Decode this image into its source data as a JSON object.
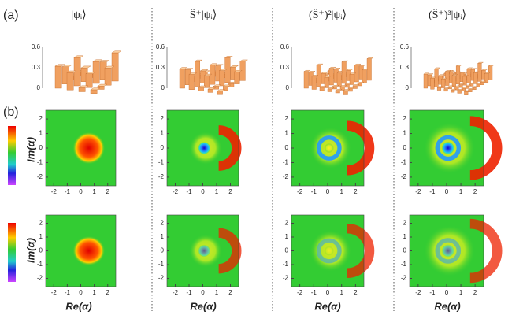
{
  "panel_labels": [
    "(a)",
    "(b)"
  ],
  "columns": [
    {
      "title": "|ψᵢ⟩"
    },
    {
      "title": "Ŝ⁺|ψᵢ⟩"
    },
    {
      "title": "(Ŝ⁺)²|ψᵢ⟩"
    },
    {
      "title": "(Ŝ⁺)³|ψᵢ⟩"
    }
  ],
  "bar_axis_ticks": [
    "0.6",
    "0.3",
    "0"
  ],
  "heatmap_axes": {
    "x_label": "Re(α)",
    "y_label": "Im(α)",
    "x_ticks": [
      "-2",
      "-1",
      "0",
      "1",
      "2"
    ],
    "y_ticks": [
      "2",
      "1",
      "0",
      "-1",
      "-2"
    ]
  }
}
